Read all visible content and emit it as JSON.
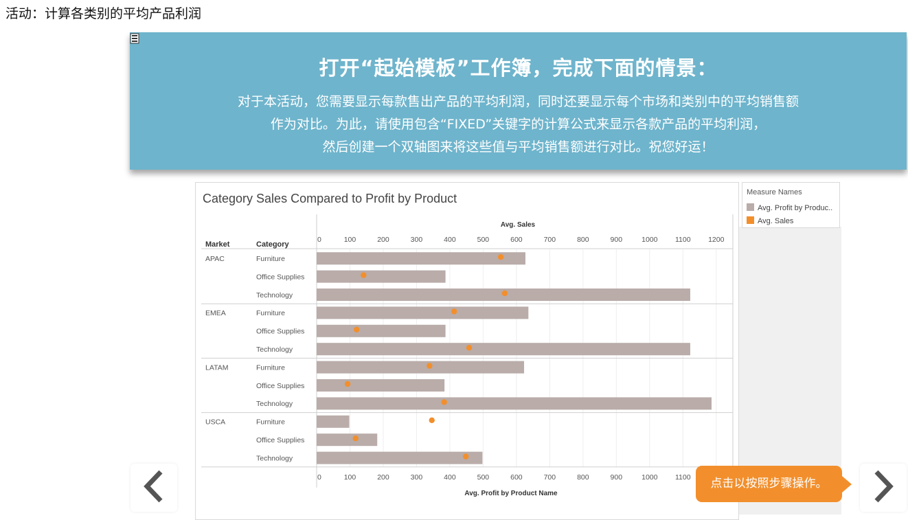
{
  "page": {
    "title": "活动：计算各类别的平均产品利润"
  },
  "banner": {
    "title": "打开“起始模板”工作簿，完成下面的情景：",
    "lines": [
      "对于本活动，您需要显示每款售出产品的平均利润，同时还要显示每个市场和类别中的平均销售额",
      "作为对比。为此，请使用包含“FIXED”关键字的计算公式来显示各款产品的平均利润，",
      "然后创建一个双轴图来将这些值与平均销售额进行对比。祝您好运！"
    ]
  },
  "icons": {
    "menu": "list-menu-icon",
    "prev": "chevron-left-icon",
    "next": "chevron-right-icon"
  },
  "colors": {
    "banner": "#6eb4cc",
    "bar": "#b9aca9",
    "dot": "#f28f2c",
    "callout": "#f28f2c"
  },
  "legend": {
    "title": "Measure Names",
    "items": [
      {
        "label": "Avg. Profit by Produc..",
        "color": "#b9aca9"
      },
      {
        "label": "Avg. Sales",
        "color": "#f28f2c"
      }
    ]
  },
  "callout": {
    "text": "点击以按照步骤操作。"
  },
  "chart_data": {
    "type": "bar",
    "title": "Category Sales Compared to Profit by Product",
    "row_headers": [
      "Market",
      "Category"
    ],
    "top_axis_label": "Avg. Sales",
    "bottom_axis_label": "Avg. Profit by Product Name",
    "ticks": [
      0,
      100,
      200,
      300,
      400,
      500,
      600,
      700,
      800,
      900,
      1000,
      1100,
      1200
    ],
    "bottom_ticks": [
      0,
      100,
      200,
      300,
      400,
      500,
      600,
      700,
      800,
      900,
      1000,
      1100
    ],
    "xlim": [
      0,
      1250
    ],
    "grid": true,
    "rows": [
      {
        "market": "APAC",
        "category": "Furniture",
        "profit": 627,
        "sales": 553
      },
      {
        "market": "",
        "category": "Office Supplies",
        "profit": 387,
        "sales": 141
      },
      {
        "market": "",
        "category": "Technology",
        "profit": 1122,
        "sales": 565
      },
      {
        "market": "EMEA",
        "category": "Furniture",
        "profit": 636,
        "sales": 413
      },
      {
        "market": "",
        "category": "Office Supplies",
        "profit": 387,
        "sales": 120
      },
      {
        "market": "",
        "category": "Technology",
        "profit": 1122,
        "sales": 458
      },
      {
        "market": "LATAM",
        "category": "Furniture",
        "profit": 623,
        "sales": 339
      },
      {
        "market": "",
        "category": "Office Supplies",
        "profit": 384,
        "sales": 93
      },
      {
        "market": "",
        "category": "Technology",
        "profit": 1186,
        "sales": 383
      },
      {
        "market": "USCA",
        "category": "Furniture",
        "profit": 98,
        "sales": 346
      },
      {
        "market": "",
        "category": "Office Supplies",
        "profit": 182,
        "sales": 117
      },
      {
        "market": "",
        "category": "Technology",
        "profit": 498,
        "sales": 448
      }
    ],
    "series": [
      {
        "name": "Avg. Profit by Produc..",
        "mark": "bar"
      },
      {
        "name": "Avg. Sales",
        "mark": "dot"
      }
    ]
  }
}
